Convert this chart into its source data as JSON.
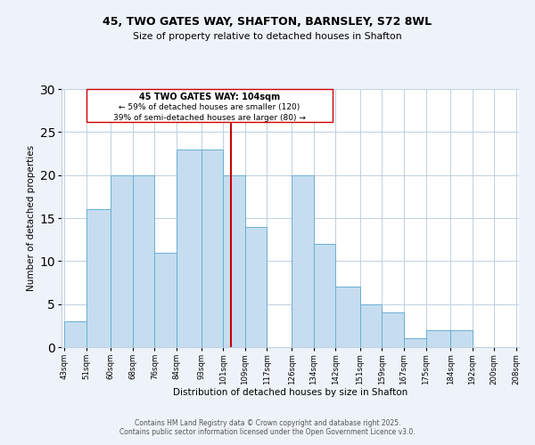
{
  "title": "45, TWO GATES WAY, SHAFTON, BARNSLEY, S72 8WL",
  "subtitle": "Size of property relative to detached houses in Shafton",
  "xlabel": "Distribution of detached houses by size in Shafton",
  "ylabel": "Number of detached properties",
  "bar_edges": [
    43,
    51,
    60,
    68,
    76,
    84,
    93,
    101,
    109,
    117,
    126,
    134,
    142,
    151,
    159,
    167,
    175,
    184,
    192,
    200,
    208
  ],
  "bar_heights": [
    3,
    16,
    20,
    20,
    11,
    23,
    23,
    20,
    14,
    0,
    20,
    12,
    7,
    5,
    4,
    1,
    2,
    2,
    0,
    0,
    0
  ],
  "bar_color": "#c5ddef",
  "bar_edge_color": "#6aafd4",
  "vline_x": 104,
  "vline_color": "#cc0000",
  "annotation_title": "45 TWO GATES WAY: 104sqm",
  "annotation_line1": "← 59% of detached houses are smaller (120)",
  "annotation_line2": "39% of semi-detached houses are larger (80) →",
  "annotation_box_color": "#ffffff",
  "annotation_box_edge": "#cc0000",
  "tick_labels": [
    "43sqm",
    "51sqm",
    "60sqm",
    "68sqm",
    "76sqm",
    "84sqm",
    "93sqm",
    "101sqm",
    "109sqm",
    "117sqm",
    "126sqm",
    "134sqm",
    "142sqm",
    "151sqm",
    "159sqm",
    "167sqm",
    "175sqm",
    "184sqm",
    "192sqm",
    "200sqm",
    "208sqm"
  ],
  "ylim": [
    0,
    30
  ],
  "yticks": [
    0,
    5,
    10,
    15,
    20,
    25,
    30
  ],
  "footer1": "Contains HM Land Registry data © Crown copyright and database right 2025.",
  "footer2": "Contains public sector information licensed under the Open Government Licence v3.0.",
  "bg_color": "#eef3f9",
  "plot_bg_color": "#ffffff",
  "grid_color": "#c0d0e0"
}
